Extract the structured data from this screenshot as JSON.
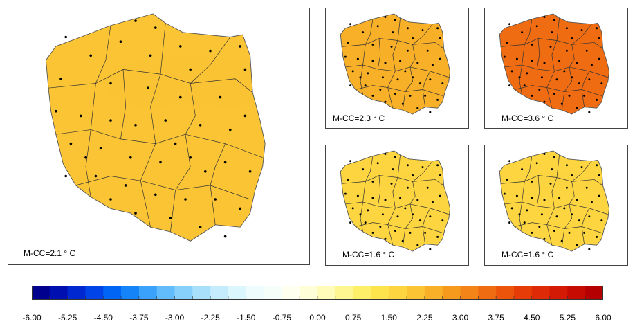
{
  "panels": [
    {
      "id": "main",
      "label": "M-CC=2.1 ° C",
      "value": 2.1
    },
    {
      "id": "top-mid",
      "label": "M-CC=2.3 ° C",
      "value": 2.3
    },
    {
      "id": "top-right",
      "label": "M-CC=3.6 ° C",
      "value": 3.6
    },
    {
      "id": "bottom-mid",
      "label": "M-CC=1.6 ° C",
      "value": 1.6
    },
    {
      "id": "bottom-right",
      "label": "M-CC=1.6 ° C",
      "value": 1.6
    }
  ],
  "colorbar": {
    "min": -6.0,
    "max": 6.0,
    "step": 0.375,
    "ticks": [
      "-6.00",
      "-5.25",
      "-4.50",
      "-3.75",
      "-3.00",
      "-2.25",
      "-1.50",
      "-0.75",
      "0.00",
      "0.75",
      "1.50",
      "2.25",
      "3.00",
      "3.75",
      "4.50",
      "5.25",
      "6.00"
    ],
    "colors": [
      "#00008f",
      "#0010b0",
      "#0028d0",
      "#0044e8",
      "#0064f4",
      "#1484f8",
      "#3aa2fb",
      "#62bcfb",
      "#88d0fc",
      "#a8e0fc",
      "#c4ecfd",
      "#dcf6fd",
      "#eefcfe",
      "#f6fef9",
      "#fffff0",
      "#fefed8",
      "#fefcb8",
      "#fef690",
      "#feef68",
      "#fee44c",
      "#fcd540",
      "#fac434",
      "#f8b028",
      "#f69a1e",
      "#f48418",
      "#f06c12",
      "#ec540c",
      "#e63c08",
      "#de2a06",
      "#d41a04",
      "#c60c02",
      "#b40000"
    ]
  }
}
